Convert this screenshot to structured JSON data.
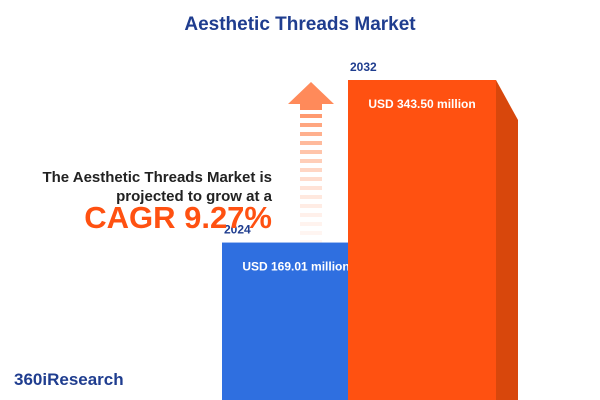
{
  "chart_data": {
    "type": "bar",
    "title": "Aesthetic Threads Market",
    "subtitle": "The Aesthetic Threads Market is projected to grow at a",
    "annotation": "CAGR 9.27%",
    "categories": [
      "2024",
      "2032"
    ],
    "values": [
      169.01,
      343.5
    ],
    "value_labels": [
      "USD 169.01 million",
      "USD 343.50 million"
    ],
    "colors": [
      "#2f6fe0",
      "#ff5111"
    ],
    "side_colors": [
      "#1a3d99",
      "#d8470c"
    ]
  },
  "brand": "360iResearch"
}
